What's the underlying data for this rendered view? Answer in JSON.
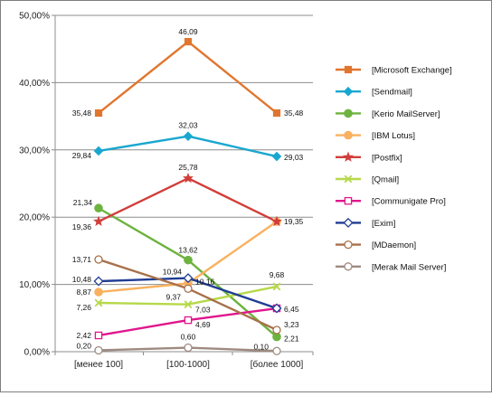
{
  "chart_data": {
    "type": "line",
    "title": "",
    "xlabel": "",
    "ylabel": "",
    "categories": [
      "[менее 100]",
      "[100-1000]",
      "[более 1000]"
    ],
    "ylim": [
      0,
      50
    ],
    "yticks": [
      0,
      10,
      20,
      30,
      40,
      50
    ],
    "ytick_labels": [
      "0,00%",
      "10,00%",
      "20,00%",
      "30,00%",
      "40,00%",
      "50,00%"
    ],
    "grid": true,
    "legend_position": "right",
    "series": [
      {
        "name": "[Microsoft Exchange]",
        "color": "#E0762E",
        "marker": "square",
        "values": [
          35.48,
          46.09,
          35.48
        ],
        "labels": [
          "35,48",
          "46,09",
          "35,48"
        ]
      },
      {
        "name": "[Sendmail]",
        "color": "#1AA7CF",
        "marker": "diamond",
        "values": [
          29.84,
          32.03,
          29.03
        ],
        "labels": [
          "29,84",
          "32,03",
          "29,03"
        ]
      },
      {
        "name": "[Kerio MailServer]",
        "color": "#6DB33F",
        "marker": "circle",
        "values": [
          21.34,
          13.62,
          2.21
        ],
        "labels": [
          "21,34",
          "13,62",
          "2,21"
        ]
      },
      {
        "name": "[IBM Lotus]",
        "color": "#F9B15F",
        "marker": "circle",
        "values": [
          8.87,
          10.16,
          19.35
        ],
        "labels": [
          "8,87",
          "10,16",
          ""
        ]
      },
      {
        "name": "[Postfix]",
        "color": "#D13E3A",
        "marker": "star",
        "values": [
          19.36,
          25.78,
          19.35
        ],
        "labels": [
          "19,36",
          "25,78",
          "19,35"
        ]
      },
      {
        "name": "[Qmail]",
        "color": "#B6D84A",
        "marker": "x",
        "values": [
          7.26,
          7.03,
          9.68
        ],
        "labels": [
          "7,26",
          "7,03",
          "9,68"
        ]
      },
      {
        "name": "[Communigate Pro]",
        "color": "#E0168C",
        "marker": "hollow-square",
        "values": [
          2.42,
          4.69,
          6.45
        ],
        "labels": [
          "2,42",
          "4,69",
          ""
        ]
      },
      {
        "name": "[Exim]",
        "color": "#1F3C93",
        "marker": "hollow-diamond",
        "values": [
          10.48,
          10.94,
          6.45
        ],
        "labels": [
          "10,48",
          "10,94",
          "6,45"
        ]
      },
      {
        "name": "[MDaemon]",
        "color": "#A8714A",
        "marker": "hollow-circle",
        "values": [
          13.71,
          9.37,
          3.23
        ],
        "labels": [
          "13,71",
          "9,37",
          "3,23"
        ]
      },
      {
        "name": "[Merak Mail Server]",
        "color": "#9E8A80",
        "marker": "hollow-circle",
        "values": [
          0.2,
          0.6,
          0.1
        ],
        "labels": [
          "0,20",
          "0,60",
          "0,10"
        ]
      }
    ]
  }
}
